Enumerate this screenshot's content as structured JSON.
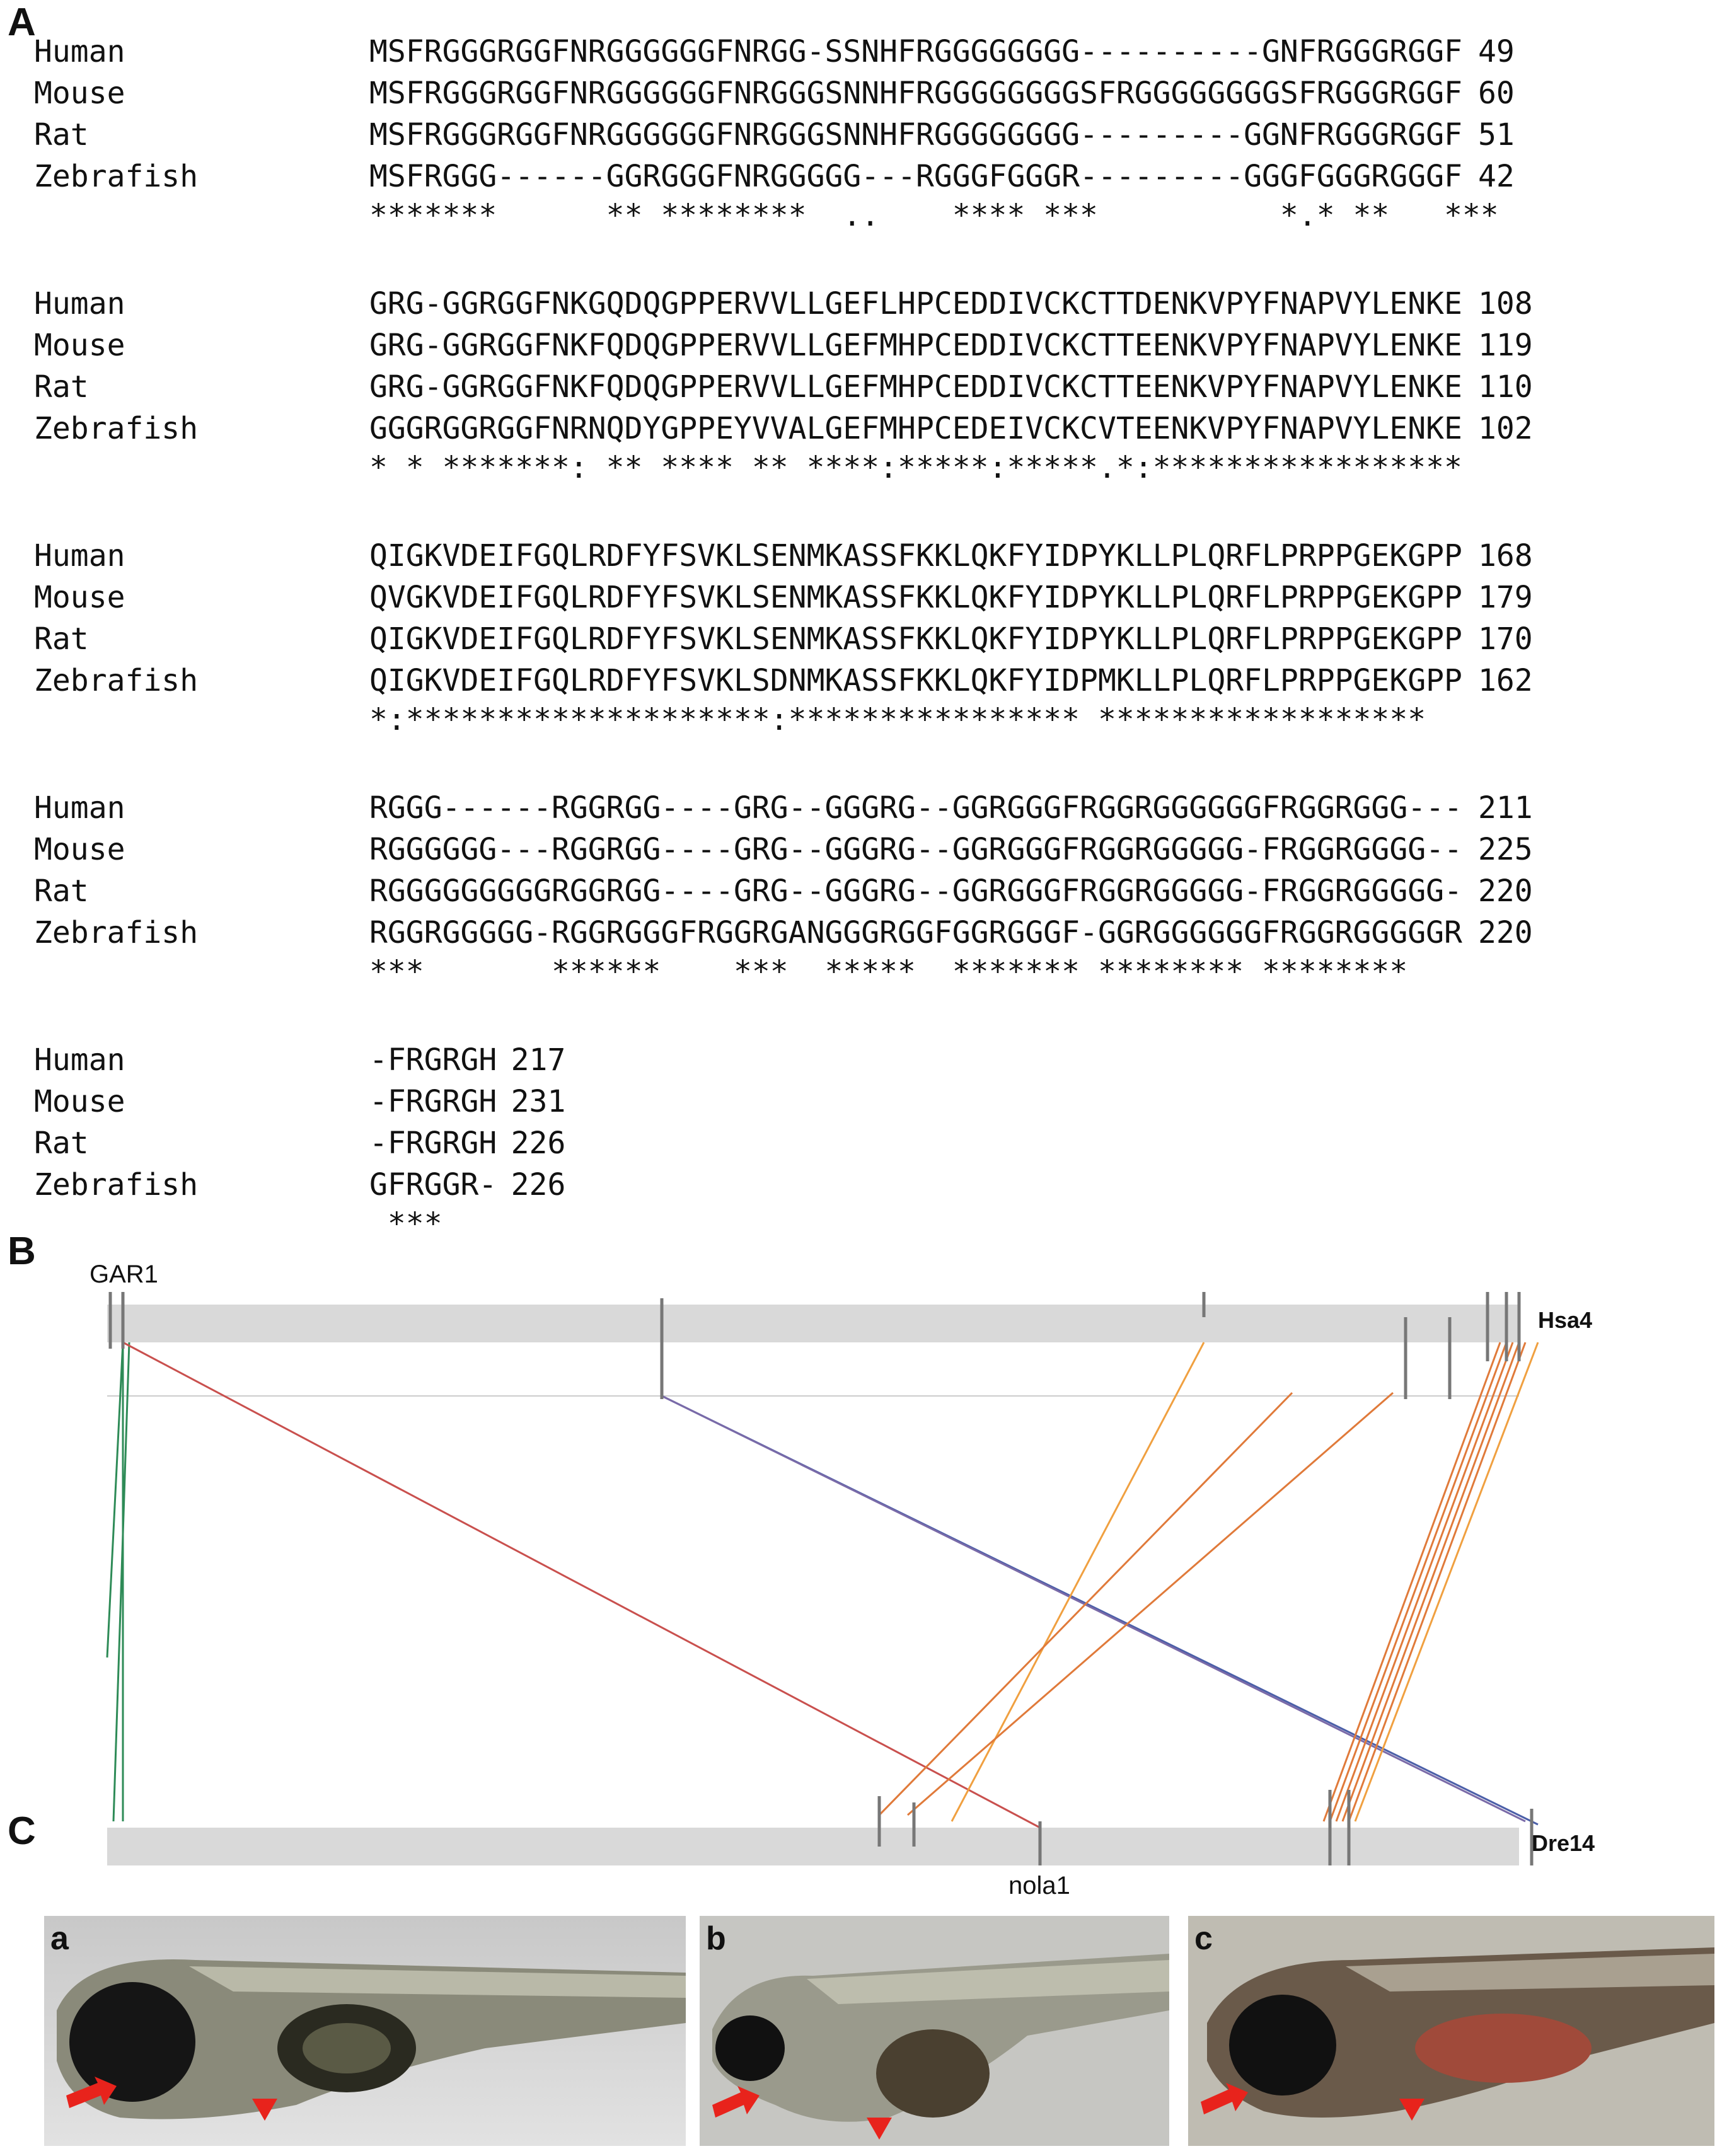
{
  "panels": {
    "a": "A",
    "b": "B",
    "c": "C"
  },
  "alignment": {
    "blocks": [
      {
        "rows": [
          {
            "species": "Human",
            "seq": "MSFRGGGRGGFNRGGGGGGFNRGG-SSNHFRGGGGGGGG----------GNFRGGGRGGF",
            "end": "49"
          },
          {
            "species": "Mouse",
            "seq": "MSFRGGGRGGFNRGGGGGGFNRGGGSNNHFRGGGGGGGGSFRGGGGGGGGSFRGGGRGGF",
            "end": "60"
          },
          {
            "species": "Rat",
            "seq": "MSFRGGGRGGFNRGGGGGGFNRGGGSNNHFRGGGGGGGG---------GGNFRGGGRGGF",
            "end": "51"
          },
          {
            "species": "Zebrafish",
            "seq": "MSFRGGG------GGRGGGFNRGGGGG---RGGGFGGGR---------GGGFGGGRGGGF",
            "end": "42"
          }
        ],
        "consensus": "*******      ** ********  ..    **** ***          *.* **   ***"
      },
      {
        "rows": [
          {
            "species": "Human",
            "seq": "GRG-GGRGGFNKGQDQGPPERVVLLGEFLHPCEDDIVCKCTTDENKVPYFNAPVYLENKE",
            "end": "108"
          },
          {
            "species": "Mouse",
            "seq": "GRG-GGRGGFNKFQDQGPPERVVLLGEFMHPCEDDIVCKCTTEENKVPYFNAPVYLENKE",
            "end": "119"
          },
          {
            "species": "Rat",
            "seq": "GRG-GGRGGFNKFQDQGPPERVVLLGEFMHPCEDDIVCKCTTEENKVPYFNAPVYLENKE",
            "end": "110"
          },
          {
            "species": "Zebrafish",
            "seq": "GGGRGGRGGFNRNQDYGPPEYVVALGEFMHPCEDEIVCKCVTEENKVPYFNAPVYLENKE",
            "end": "102"
          }
        ],
        "consensus": "* * *******: ** **** ** ****:*****:*****.*:*****************"
      },
      {
        "rows": [
          {
            "species": "Human",
            "seq": "QIGKVDEIFGQLRDFYFSVKLSENMKASSFKKLQKFYIDPYKLLPLQRFLPRPPGEKGPP",
            "end": "168"
          },
          {
            "species": "Mouse",
            "seq": "QVGKVDEIFGQLRDFYFSVKLSENMKASSFKKLQKFYIDPYKLLPLQRFLPRPPGEKGPP",
            "end": "179"
          },
          {
            "species": "Rat",
            "seq": "QIGKVDEIFGQLRDFYFSVKLSENMKASSFKKLQKFYIDPYKLLPLQRFLPRPPGEKGPP",
            "end": "170"
          },
          {
            "species": "Zebrafish",
            "seq": "QIGKVDEIFGQLRDFYFSVKLSDNMKASSFKKLQKFYIDPMKLLPLQRFLPRPPGEKGPP",
            "end": "162"
          }
        ],
        "consensus": "*:********************:**************** ******************"
      },
      {
        "rows": [
          {
            "species": "Human",
            "seq": "RGGG------RGGRGG----GRG--GGGRG--GGRGGGFRGGRGGGGGGFRGGRGGG---",
            "end": "211"
          },
          {
            "species": "Mouse",
            "seq": "RGGGGGG---RGGRGG----GRG--GGGRG--GGRGGGFRGGRGGGGG-FRGGRGGGG--",
            "end": "225"
          },
          {
            "species": "Rat",
            "seq": "RGGGGGGGGGRGGRGG----GRG--GGGRG--GGRGGGFRGGRGGGGG-FRGGRGGGGG-",
            "end": "220"
          },
          {
            "species": "Zebrafish",
            "seq": "RGGRGGGGG-RGGRGGGFRGGRGANGGGRGGFGGRGGGF-GGRGGGGGGFRGGRGGGGGR",
            "end": "220"
          }
        ],
        "consensus": "***       ******    ***  *****  ******* ******** ********"
      },
      {
        "rows": [
          {
            "species": "Human",
            "seq": "-FRGRGH",
            "end": "217"
          },
          {
            "species": "Mouse",
            "seq": "-FRGRGH",
            "end": "231"
          },
          {
            "species": "Rat",
            "seq": "-FRGRGH",
            "end": "226"
          },
          {
            "species": "Zebrafish",
            "seq": "GFRGGR-",
            "end": "226"
          }
        ],
        "consensus": " ***"
      }
    ]
  },
  "synteny": {
    "top_chrom": "Hsa4",
    "bottom_chrom": "Dre14",
    "top_gene": "GAR1",
    "bottom_gene": "nola1",
    "colors": {
      "bar": "#d9d9d9",
      "green": "#2e8b57",
      "red": "#c9504e",
      "blue": "#4b5fa8",
      "purple": "#7a6aa8",
      "orange": "#f0a040",
      "dark_orange": "#e07a3a"
    }
  },
  "embryos": {
    "labels": [
      "a",
      "b",
      "c"
    ],
    "marker_colors": {
      "arrow": "#e8231c",
      "arrowhead": "#e8231c"
    }
  }
}
